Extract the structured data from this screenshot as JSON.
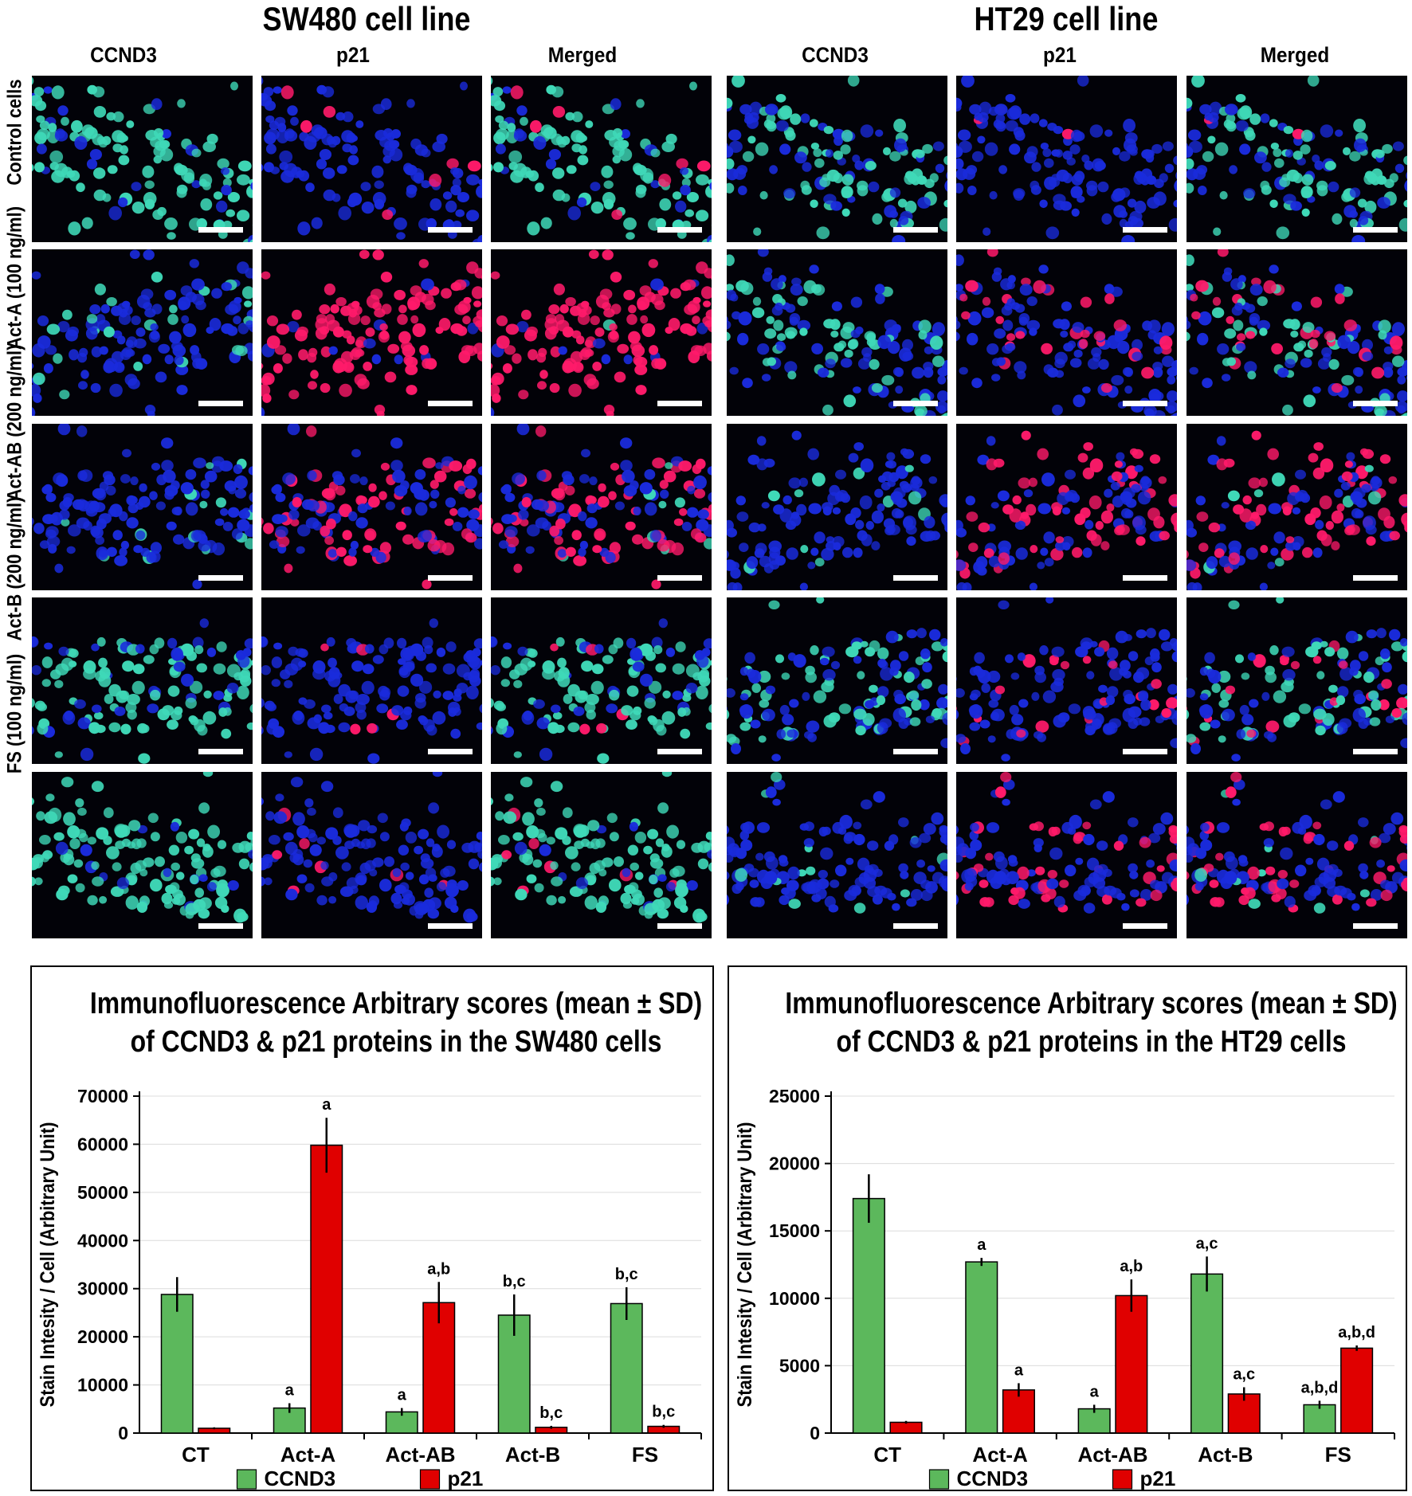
{
  "figure": {
    "panels": [
      {
        "id": "sw480",
        "title": "SW480 cell line",
        "columns": [
          "CCND3",
          "p21",
          "Merged"
        ],
        "rows": [
          "Control cells",
          "Act-A (100 ng/ml)",
          "Act-AB (200 ng/ml)",
          "Act-B (200 ng/ml)",
          "FS (100 ng/ml)"
        ]
      },
      {
        "id": "ht29",
        "title": "HT29 cell line",
        "columns": [
          "CCND3",
          "p21",
          "Merged"
        ]
      }
    ],
    "colors": {
      "ccnd3": "#5cb85c",
      "p21": "#e00000",
      "nucleus_blue": "#1a2bdc",
      "ccnd3_stain": "#3fd9b8",
      "p21_stain": "#ff1a6a"
    },
    "stain_levels": {
      "sw480": [
        {
          "ccnd3": 0.85,
          "p21": 0.05
        },
        {
          "ccnd3": 0.15,
          "p21": 0.95
        },
        {
          "ccnd3": 0.1,
          "p21": 0.5
        },
        {
          "ccnd3": 0.75,
          "p21": 0.05
        },
        {
          "ccnd3": 0.85,
          "p21": 0.05
        }
      ],
      "ht29": [
        {
          "ccnd3": 0.6,
          "p21": 0.03
        },
        {
          "ccnd3": 0.45,
          "p21": 0.15
        },
        {
          "ccnd3": 0.1,
          "p21": 0.5
        },
        {
          "ccnd3": 0.45,
          "p21": 0.15
        },
        {
          "ccnd3": 0.1,
          "p21": 0.35
        }
      ]
    }
  },
  "chart_data": [
    {
      "type": "bar",
      "title": "Immunofluorescence Arbitrary scores (mean ± SD)",
      "subtitle": "of CCND3 & p21 proteins in the SW480 cells",
      "ylabel": "Stain Intesity / Cell (Arbitrary Unit)",
      "xlabel": "",
      "categories": [
        "CT",
        "Act-A",
        "Act-AB",
        "Act-B",
        "FS"
      ],
      "ylim": [
        0,
        70000
      ],
      "yticks": [
        0,
        10000,
        20000,
        30000,
        40000,
        50000,
        60000,
        70000
      ],
      "grid": true,
      "legend": "bottom",
      "series": [
        {
          "name": "CCND3",
          "color": "#5cb85c",
          "values": [
            28800,
            5200,
            4400,
            24500,
            26900
          ],
          "errors": [
            3600,
            1000,
            800,
            4300,
            3400
          ],
          "annotations": [
            "",
            "a",
            "a",
            "b,c",
            "b,c"
          ]
        },
        {
          "name": "p21",
          "color": "#e00000",
          "values": [
            1000,
            59800,
            27100,
            1200,
            1400
          ],
          "errors": [
            200,
            5700,
            4300,
            300,
            300
          ],
          "annotations": [
            "",
            "a",
            "a,b",
            "b,c",
            "b,c"
          ]
        }
      ]
    },
    {
      "type": "bar",
      "title": "Immunofluorescence Arbitrary scores (mean ± SD)",
      "subtitle": "of CCND3 & p21 proteins in the HT29 cells",
      "ylabel": "Stain Intesity / Cell (Arbitrary Unit)",
      "xlabel": "",
      "categories": [
        "CT",
        "Act-A",
        "Act-AB",
        "Act-B",
        "FS"
      ],
      "ylim": [
        0,
        25000
      ],
      "yticks": [
        0,
        5000,
        10000,
        15000,
        20000,
        25000
      ],
      "grid": true,
      "legend": "bottom",
      "series": [
        {
          "name": "CCND3",
          "color": "#5cb85c",
          "values": [
            17400,
            12700,
            1800,
            11800,
            2100
          ],
          "errors": [
            1800,
            300,
            300,
            1300,
            300
          ],
          "annotations": [
            "",
            "a",
            "a",
            "a,c",
            "a,b,d"
          ]
        },
        {
          "name": "p21",
          "color": "#e00000",
          "values": [
            800,
            3200,
            10200,
            2900,
            6300
          ],
          "errors": [
            100,
            500,
            1200,
            500,
            200
          ],
          "annotations": [
            "",
            "a",
            "a,b",
            "a,c",
            "a,b,d"
          ]
        }
      ]
    }
  ]
}
